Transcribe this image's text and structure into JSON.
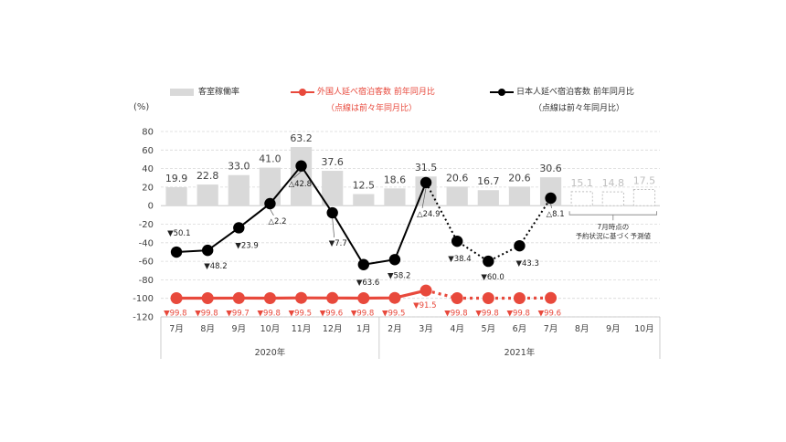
{
  "colors": {
    "bar": "#d9d9d9",
    "forecast_bar_border": "#bfbfbf",
    "foreign": "#e8493c",
    "japanese": "#000000",
    "grid": "#d9d9d9",
    "text": "#404040"
  },
  "legend": {
    "occupancy": "客室稼働率",
    "foreign": "外国人延べ宿泊客数 前年同月比",
    "foreign_note": "（点線は前々年同月比）",
    "japanese": "日本人延べ宿泊客数 前年同月比",
    "japanese_note": "（点線は前々年同月比）"
  },
  "chart_data": {
    "type": "bar+line",
    "y_unit": "(%)",
    "ylim": [
      -120,
      80
    ],
    "yticks": [
      "80",
      "60",
      "40",
      "20",
      "0",
      "-20",
      "-40",
      "-60",
      "-80",
      "-100",
      "-120"
    ],
    "categories": [
      "7月",
      "8月",
      "9月",
      "10月",
      "11月",
      "12月",
      "1月",
      "2月",
      "3月",
      "4月",
      "5月",
      "6月",
      "7月",
      "8月",
      "9月",
      "10月"
    ],
    "year_groups": [
      {
        "label": "2020年",
        "start": 0,
        "end": 6
      },
      {
        "label": "2021年",
        "start": 7,
        "end": 15
      }
    ],
    "grid": true,
    "occupancy": {
      "name": "客室稼働率",
      "values": [
        19.9,
        22.8,
        33.0,
        41.0,
        63.2,
        37.6,
        12.5,
        18.6,
        31.5,
        20.6,
        16.7,
        20.6,
        30.6,
        15.1,
        14.8,
        17.5
      ],
      "labels": [
        "19.9",
        "22.8",
        "33.0",
        "41.0",
        "63.2",
        "37.6",
        "12.5",
        "18.6",
        "31.5",
        "20.6",
        "16.7",
        "20.6",
        "30.6",
        "15.1",
        "14.8",
        "17.5"
      ],
      "forecast_from_index": 13
    },
    "foreign": {
      "name": "外国人延べ宿泊客数 前年同月比",
      "values": [
        -99.8,
        -99.8,
        -99.7,
        -99.8,
        -99.5,
        -99.6,
        -99.8,
        -99.5,
        -91.5,
        -99.8,
        -99.8,
        -99.8,
        -99.6
      ],
      "labels": [
        "▼99.8",
        "▼99.8",
        "▼99.7",
        "▼99.8",
        "▼99.5",
        "▼99.6",
        "▼99.8",
        "▼99.5",
        "▼91.5",
        "▼99.8",
        "▼99.8",
        "▼99.8",
        "▼99.6"
      ],
      "dotted_from_index": 8
    },
    "japanese": {
      "name": "日本人延べ宿泊客数 前年同月比",
      "values": [
        -50.1,
        -48.2,
        -23.9,
        2.2,
        42.8,
        -7.7,
        -63.6,
        -58.2,
        24.9,
        -38.4,
        -60.0,
        -43.3,
        8.1
      ],
      "labels": [
        "▼50.1",
        "▼48.2",
        "▼23.9",
        "△2.2",
        "△42.8",
        "▼7.7",
        "▼63.6",
        "▼58.2",
        "△24.9",
        "▼38.4",
        "▼60.0",
        "▼43.3",
        "△8.1"
      ],
      "dotted_from_index": 8
    },
    "forecast_annotation": [
      "7月時点の",
      "予約状況に基づく予測値"
    ]
  }
}
